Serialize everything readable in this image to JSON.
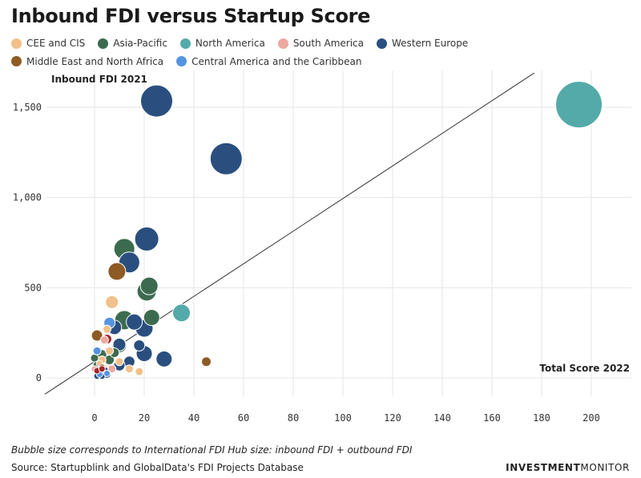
{
  "chart_data": {
    "type": "scatter",
    "title": "Inbound FDI versus Startup Score",
    "xlabel": "Total Score 2022",
    "ylabel": "Inbound FDI 2021",
    "xlim": [
      -20,
      215
    ],
    "ylim": [
      -100,
      1700
    ],
    "x_ticks": [
      0,
      20,
      40,
      60,
      80,
      100,
      120,
      140,
      160,
      180,
      200
    ],
    "y_ticks": [
      0,
      500,
      1000,
      1500
    ],
    "y_tick_labels": [
      "0",
      "500",
      "1,000",
      "1,500"
    ],
    "grid": true,
    "reference_line": {
      "from": [
        -20,
        -90
      ],
      "to": [
        177,
        1690
      ]
    },
    "series": [
      {
        "name": "CEE and CIS",
        "color": "#f2c08a",
        "points": [
          [
            7,
            420,
            8
          ],
          [
            4,
            50,
            5
          ],
          [
            14,
            50,
            5
          ],
          [
            18,
            35,
            5
          ],
          [
            3,
            100,
            5
          ],
          [
            6,
            150,
            5
          ],
          [
            10,
            90,
            5
          ],
          [
            2,
            80,
            4
          ],
          [
            5,
            270,
            5
          ]
        ]
      },
      {
        "name": "Asia-Pacific",
        "color": "#3d6b4f",
        "points": [
          [
            12,
            715,
            13
          ],
          [
            21,
            480,
            12
          ],
          [
            22,
            510,
            11
          ],
          [
            23,
            335,
            10
          ],
          [
            12,
            320,
            12
          ],
          [
            10,
            180,
            9
          ],
          [
            3,
            130,
            6
          ],
          [
            6,
            100,
            6
          ],
          [
            8,
            140,
            6
          ],
          [
            0,
            110,
            5
          ],
          [
            1,
            70,
            5
          ]
        ]
      },
      {
        "name": "North America",
        "color": "#54aaa8",
        "points": [
          [
            195,
            1515,
            29
          ],
          [
            35,
            360,
            11
          ]
        ]
      },
      {
        "name": "South America",
        "color": "#eea99e",
        "points": [
          [
            2,
            30,
            5
          ],
          [
            4,
            210,
            5
          ],
          [
            7,
            50,
            5
          ],
          [
            0,
            50,
            4
          ]
        ]
      },
      {
        "name": "Western Europe",
        "color": "#2a4f7f",
        "points": [
          [
            25,
            1535,
            20
          ],
          [
            53,
            1215,
            20
          ],
          [
            21,
            770,
            15
          ],
          [
            14,
            640,
            13
          ],
          [
            16,
            310,
            10
          ],
          [
            20,
            275,
            11
          ],
          [
            8,
            280,
            9
          ],
          [
            10,
            185,
            8
          ],
          [
            18,
            180,
            7
          ],
          [
            20,
            135,
            10
          ],
          [
            28,
            105,
            10
          ],
          [
            14,
            90,
            7
          ],
          [
            10,
            70,
            7
          ],
          [
            4,
            40,
            5
          ],
          [
            5,
            20,
            5
          ],
          [
            1,
            10,
            4
          ],
          [
            3,
            10,
            4
          ]
        ]
      },
      {
        "name": "Middle East and North Africa",
        "color": "#8e5a25",
        "points": [
          [
            9,
            590,
            11
          ],
          [
            1,
            235,
            7
          ],
          [
            45,
            90,
            6
          ],
          [
            3,
            60,
            4
          ]
        ]
      },
      {
        "name": "Central America and the Caribbean",
        "color": "#5594e0",
        "points": [
          [
            6,
            305,
            7
          ],
          [
            1,
            150,
            5
          ],
          [
            2,
            20,
            4
          ],
          [
            5,
            25,
            4
          ]
        ]
      }
    ],
    "extra_points": [
      {
        "color": "#a3262a",
        "points": [
          [
            5,
            215,
            6
          ],
          [
            1,
            40,
            4
          ],
          [
            3,
            50,
            4
          ]
        ]
      }
    ],
    "annotations": {
      "footnote": "Bubble size corresponds to International FDI Hub size: inbound FDI + outbound FDI",
      "source": "Source: Startupblink and GlobalData's FDI Projects Database",
      "brand_bold": "INVESTMENT",
      "brand_light": "MONITOR"
    }
  }
}
